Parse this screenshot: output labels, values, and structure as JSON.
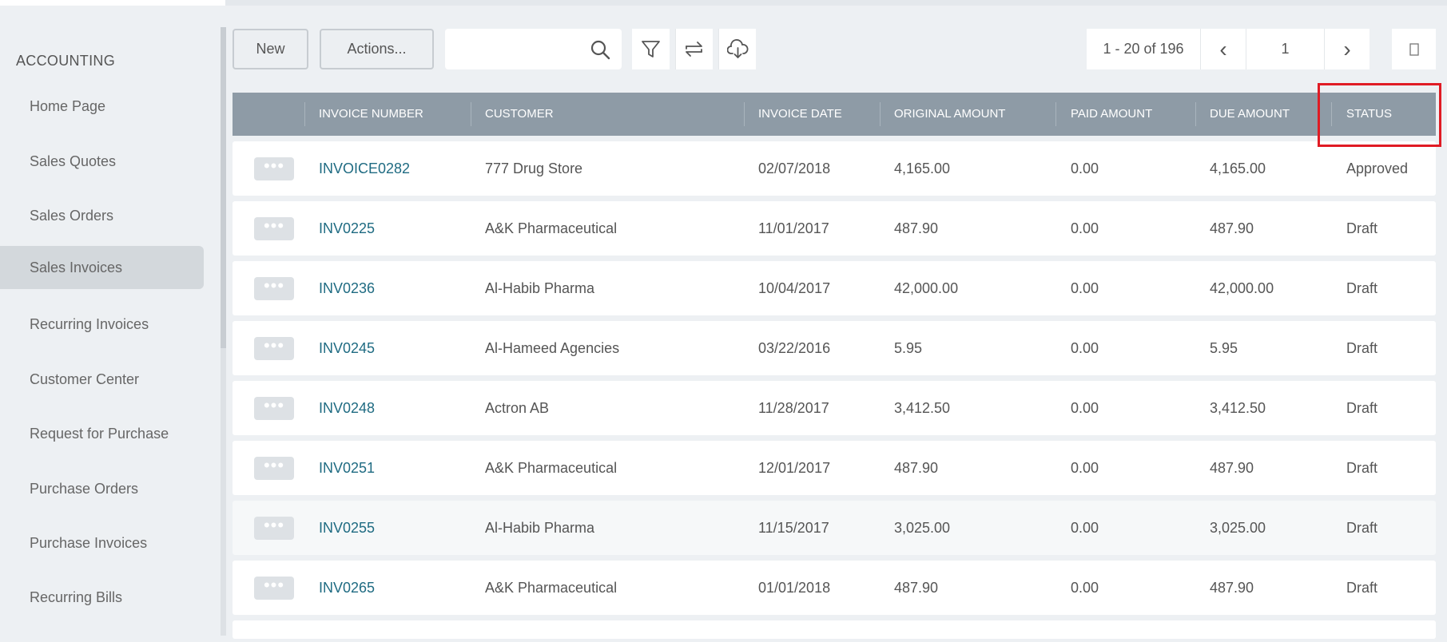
{
  "sidebar": {
    "section_title": "ACCOUNTING",
    "items": [
      {
        "label": "Home Page",
        "active": false
      },
      {
        "label": "Sales Quotes",
        "active": false
      },
      {
        "label": "Sales Orders",
        "active": false
      },
      {
        "label": "Sales Invoices",
        "active": true
      },
      {
        "label": "Recurring Invoices",
        "active": false
      },
      {
        "label": "Customer Center",
        "active": false
      },
      {
        "label": "Request for Purchase",
        "active": false
      },
      {
        "label": "Purchase Orders",
        "active": false
      },
      {
        "label": "Purchase Invoices",
        "active": false
      },
      {
        "label": "Recurring Bills",
        "active": false
      }
    ]
  },
  "toolbar": {
    "new_label": "New",
    "actions_label": "Actions...",
    "search_value": "",
    "search_placeholder": "",
    "icons": [
      "search-icon",
      "filter-icon",
      "swap-icon",
      "cloud-download-icon"
    ]
  },
  "pager": {
    "range": "1 - 20 of 196",
    "prev_symbol": "‹",
    "page": "1",
    "next_symbol": "›",
    "column_toggle_icon": "column-icon"
  },
  "table": {
    "columns": [
      "INVOICE NUMBER",
      "CUSTOMER",
      "INVOICE DATE",
      "ORIGINAL AMOUNT",
      "PAID AMOUNT",
      "DUE AMOUNT",
      "STATUS"
    ],
    "row_action_symbol": "•••",
    "rows": [
      {
        "invoice": "INVOICE0282",
        "customer": "777 Drug Store",
        "date": "02/07/2018",
        "original": "4,165.00",
        "paid": "0.00",
        "due": "4,165.00",
        "status": "Approved"
      },
      {
        "invoice": "INV0225",
        "customer": "A&K Pharmaceutical",
        "date": "11/01/2017",
        "original": "487.90",
        "paid": "0.00",
        "due": "487.90",
        "status": "Draft"
      },
      {
        "invoice": "INV0236",
        "customer": "Al-Habib Pharma",
        "date": "10/04/2017",
        "original": "42,000.00",
        "paid": "0.00",
        "due": "42,000.00",
        "status": "Draft"
      },
      {
        "invoice": "INV0245",
        "customer": "Al-Hameed Agencies",
        "date": "03/22/2016",
        "original": "5.95",
        "paid": "0.00",
        "due": "5.95",
        "status": "Draft"
      },
      {
        "invoice": "INV0248",
        "customer": "Actron AB",
        "date": "11/28/2017",
        "original": "3,412.50",
        "paid": "0.00",
        "due": "3,412.50",
        "status": "Draft"
      },
      {
        "invoice": "INV0251",
        "customer": "A&K Pharmaceutical",
        "date": "12/01/2017",
        "original": "487.90",
        "paid": "0.00",
        "due": "487.90",
        "status": "Draft"
      },
      {
        "invoice": "INV0255",
        "customer": "Al-Habib Pharma",
        "date": "11/15/2017",
        "original": "3,025.00",
        "paid": "0.00",
        "due": "3,025.00",
        "status": "Draft"
      },
      {
        "invoice": "INV0265",
        "customer": "A&K Pharmaceutical",
        "date": "01/01/2018",
        "original": "487.90",
        "paid": "0.00",
        "due": "487.90",
        "status": "Draft"
      }
    ]
  },
  "highlight": {
    "target": "STATUS",
    "color": "#e01b24"
  },
  "colors": {
    "header_bg": "#8e9ba6",
    "link": "#1f6b82",
    "active_item": "#d3d8dc",
    "page_bg": "#edf0f3"
  }
}
